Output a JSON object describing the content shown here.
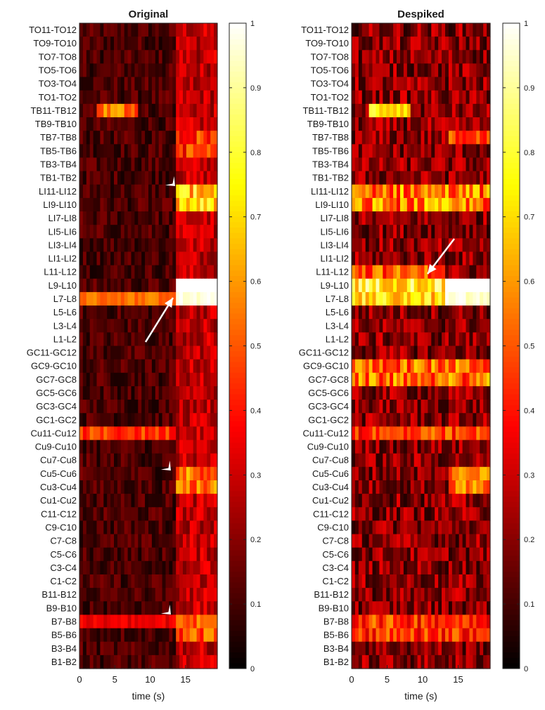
{
  "chart_data": [
    {
      "type": "heatmap",
      "title": "Original",
      "xlabel": "time (s)",
      "ylabel": "",
      "xlim": [
        0,
        19.5
      ],
      "x_ticks": [
        0,
        5,
        10,
        15
      ],
      "rows": [
        "TO11-TO12",
        "TO9-TO10",
        "TO7-TO8",
        "TO5-TO6",
        "TO3-TO4",
        "TO1-TO2",
        "TB11-TB12",
        "TB9-TB10",
        "TB7-TB8",
        "TB5-TB6",
        "TB3-TB4",
        "TB1-TB2",
        "LI11-LI12",
        "LI9-LI10",
        "LI7-LI8",
        "LI5-LI6",
        "LI3-LI4",
        "LI1-LI2",
        "L11-L12",
        "L9-L10",
        "L7-L8",
        "L5-L6",
        "L3-L4",
        "L1-L2",
        "GC11-GC12",
        "GC9-GC10",
        "GC7-GC8",
        "GC5-GC6",
        "GC3-GC4",
        "GC1-GC2",
        "Cu11-Cu12",
        "Cu9-Cu10",
        "Cu7-Cu8",
        "Cu5-Cu6",
        "Cu3-Cu4",
        "Cu1-Cu2",
        "C11-C12",
        "C9-C10",
        "C7-C8",
        "C5-C6",
        "C3-C4",
        "C1-C2",
        "B11-B12",
        "B9-B10",
        "B7-B8",
        "B5-B6",
        "B3-B4",
        "B1-B2"
      ],
      "colorbar": {
        "range": [
          0,
          1
        ],
        "ticks": [
          0,
          0.1,
          0.2,
          0.3,
          0.4,
          0.5,
          0.6,
          0.7,
          0.8,
          0.9,
          1
        ],
        "colormap": "hot"
      },
      "approx_intensity": {
        "TB11-TB12 (t 2-8 s)": 0.6,
        "LI9-LI10 (t 14-19 s)": 0.75,
        "L9-L10 (t 14-19 s)": 1.0,
        "L7-L8 (t 0-14 s)": 0.55,
        "Cu11-Cu12 (t 0-14 s)": 0.45,
        "Cu5-Cu6 (t 14-19 s)": 0.55,
        "B7-B8 (t 0-14 s)": 0.35,
        "B5-B6 (t 14-19 s)": 0.5,
        "background": 0.12
      }
    },
    {
      "type": "heatmap",
      "title": "Despiked",
      "xlabel": "time (s)",
      "ylabel": "",
      "xlim": [
        0,
        19.5
      ],
      "x_ticks": [
        0,
        5,
        10,
        15
      ],
      "rows": [
        "TO11-TO12",
        "TO9-TO10",
        "TO7-TO8",
        "TO5-TO6",
        "TO3-TO4",
        "TO1-TO2",
        "TB11-TB12",
        "TB9-TB10",
        "TB7-TB8",
        "TB5-TB6",
        "TB3-TB4",
        "TB1-TB2",
        "LI11-LI12",
        "LI9-LI10",
        "LI7-LI8",
        "LI5-LI6",
        "LI3-LI4",
        "LI1-LI2",
        "L11-L12",
        "L9-L10",
        "L7-L8",
        "L5-L6",
        "L3-L4",
        "L1-L2",
        "GC11-GC12",
        "GC9-GC10",
        "GC7-GC8",
        "GC5-GC6",
        "GC3-GC4",
        "GC1-GC2",
        "Cu11-Cu12",
        "Cu9-Cu10",
        "Cu7-Cu8",
        "Cu5-Cu6",
        "Cu3-Cu4",
        "Cu1-Cu2",
        "C11-C12",
        "C9-C10",
        "C7-C8",
        "C5-C6",
        "C3-C4",
        "C1-C2",
        "B11-B12",
        "B9-B10",
        "B7-B8",
        "B5-B6",
        "B3-B4",
        "B1-B2"
      ],
      "colorbar": {
        "range": [
          0,
          1
        ],
        "ticks": [
          0,
          0.1,
          0.2,
          0.3,
          0.4,
          0.5,
          0.6,
          0.7,
          0.8,
          0.9,
          1
        ],
        "colormap": "hot"
      },
      "approx_intensity": {
        "TB11-TB12 (t 2-8 s)": 0.75,
        "LI9-LI10 (t 0-19 s)": 0.6,
        "L9-L10 (t 0-13 s)": 0.8,
        "L9-L10 (t 13-19 s)": 1.0,
        "GC9-GC10 (t 0-14 s)": 0.55,
        "Cu5-Cu6 (t 14-19 s)": 0.55,
        "B5-B6 (t 0-19 s)": 0.45,
        "background": 0.18
      }
    }
  ]
}
